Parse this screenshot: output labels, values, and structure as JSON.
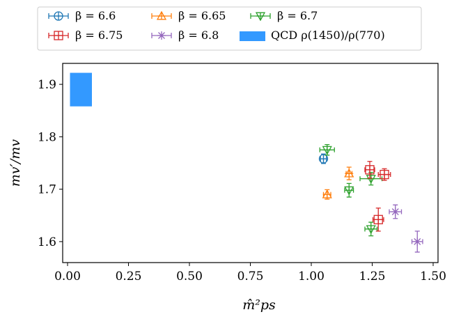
{
  "chart_data": {
    "type": "scatter",
    "xlabel": "m̂²ps",
    "ylabel": "mv′/mv",
    "xlim": [
      -0.02,
      1.52
    ],
    "ylim": [
      1.56,
      1.94
    ],
    "xticks": [
      "0.00",
      "0.25",
      "0.50",
      "0.75",
      "1.00",
      "1.25",
      "1.50"
    ],
    "xtick_values": [
      0.0,
      0.25,
      0.5,
      0.75,
      1.0,
      1.25,
      1.5
    ],
    "yticks": [
      "1.6",
      "1.7",
      "1.8",
      "1.9"
    ],
    "ytick_values": [
      1.6,
      1.7,
      1.8,
      1.9
    ],
    "grid": false,
    "legend_position": "top-center, outside",
    "band": {
      "name": "QCD ρ(1450)/ρ(770)",
      "x": [
        0.01,
        0.1
      ],
      "y": [
        1.858,
        1.922
      ],
      "color": "#3399ff"
    },
    "series": [
      {
        "name": "β = 6.6",
        "color": "#1f77b4",
        "marker": "circle-plus",
        "points": [
          {
            "x": 1.05,
            "y": 1.758,
            "xerr": 0.012,
            "yerr": 0.009
          }
        ]
      },
      {
        "name": "β = 6.65",
        "color": "#ff7f0e",
        "marker": "triangle-up-plus",
        "points": [
          {
            "x": 1.155,
            "y": 1.73,
            "xerr": 0.012,
            "yerr": 0.012
          },
          {
            "x": 1.065,
            "y": 1.69,
            "xerr": 0.015,
            "yerr": 0.009
          }
        ]
      },
      {
        "name": "β = 6.7",
        "color": "#2ca02c",
        "marker": "triangle-down-plus",
        "points": [
          {
            "x": 1.065,
            "y": 1.775,
            "xerr": 0.03,
            "yerr": 0.01
          },
          {
            "x": 1.245,
            "y": 1.72,
            "xerr": 0.045,
            "yerr": 0.012
          },
          {
            "x": 1.155,
            "y": 1.698,
            "xerr": 0.018,
            "yerr": 0.013
          },
          {
            "x": 1.245,
            "y": 1.624,
            "xerr": 0.025,
            "yerr": 0.013
          }
        ]
      },
      {
        "name": "β = 6.75",
        "color": "#d62728",
        "marker": "square-plus",
        "points": [
          {
            "x": 1.24,
            "y": 1.737,
            "xerr": 0.02,
            "yerr": 0.016
          },
          {
            "x": 1.3,
            "y": 1.728,
            "xerr": 0.025,
            "yerr": 0.011
          },
          {
            "x": 1.275,
            "y": 1.642,
            "xerr": 0.022,
            "yerr": 0.022
          }
        ]
      },
      {
        "name": "β = 6.8",
        "color": "#9467bd",
        "marker": "star",
        "points": [
          {
            "x": 1.345,
            "y": 1.657,
            "xerr": 0.025,
            "yerr": 0.013
          },
          {
            "x": 1.435,
            "y": 1.6,
            "xerr": 0.022,
            "yerr": 0.02
          }
        ]
      }
    ]
  }
}
